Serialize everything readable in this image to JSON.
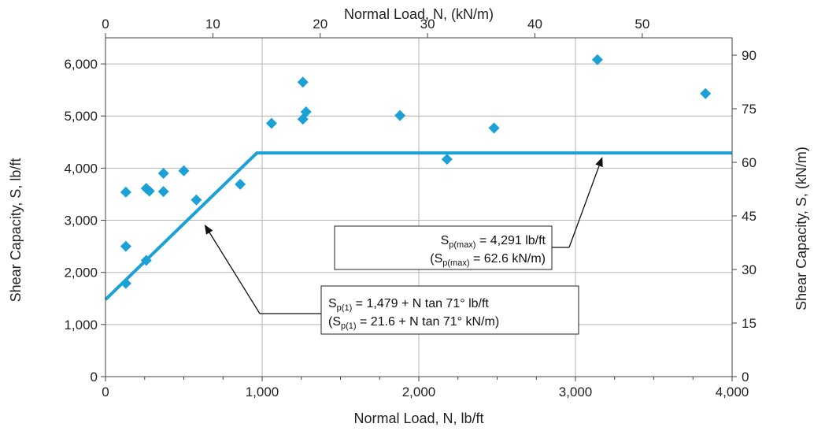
{
  "chart_data": {
    "type": "scatter",
    "title": "",
    "xlabel": "Normal Load, N, lb/ft",
    "ylabel": "Shear Capacity, S, lb/ft",
    "x2label": "Normal Load, N, (kN/m)",
    "y2label": "Shear Capacity, S, (kN/m)",
    "xlim": [
      0,
      4000
    ],
    "ylim": [
      0,
      6500
    ],
    "x2lim": [
      0,
      58.37
    ],
    "y2lim": [
      0,
      94.86
    ],
    "xticks": [
      0,
      1000,
      2000,
      3000,
      4000
    ],
    "xtick_labels": [
      "0",
      "1,000",
      "2,000",
      "3,000",
      "4,000"
    ],
    "yticks": [
      0,
      1000,
      2000,
      3000,
      4000,
      5000,
      6000
    ],
    "ytick_labels": [
      "0",
      "1,000",
      "2,000",
      "3,000",
      "4,000",
      "5,000",
      "6,000"
    ],
    "x2ticks": [
      0,
      10,
      20,
      30,
      40,
      50
    ],
    "x2tick_labels": [
      "0",
      "10",
      "20",
      "30",
      "40",
      "50"
    ],
    "y2ticks": [
      0,
      15,
      30,
      45,
      60,
      75,
      90
    ],
    "y2tick_labels": [
      "0",
      "15",
      "30",
      "45",
      "60",
      "75",
      "90"
    ],
    "grid": true,
    "color": "#1ba1d6",
    "series": [
      {
        "type": "scatter",
        "points": [
          [
            130,
            3540
          ],
          [
            130,
            2500
          ],
          [
            130,
            1790
          ],
          [
            260,
            3610
          ],
          [
            280,
            3560
          ],
          [
            260,
            2230
          ],
          [
            370,
            3900
          ],
          [
            370,
            3550
          ],
          [
            500,
            3950
          ],
          [
            580,
            3390
          ],
          [
            860,
            3690
          ],
          [
            1060,
            4860
          ],
          [
            1260,
            5650
          ],
          [
            1260,
            4940
          ],
          [
            1280,
            5080
          ],
          [
            1880,
            5010
          ],
          [
            2180,
            4170
          ],
          [
            2480,
            4770
          ],
          [
            3140,
            6080
          ],
          [
            3830,
            5430
          ]
        ]
      },
      {
        "type": "line",
        "points": [
          [
            0,
            1479
          ],
          [
            966,
            4291
          ],
          [
            4000,
            4291
          ]
        ]
      }
    ],
    "annotations": [
      {
        "id": "max",
        "line1_main": "S",
        "line1_sub": "p(max)",
        "line1_rest": " = 4,291 lb/ft",
        "line2_open": "(S",
        "line2_sub": "p(max)",
        "line2_rest": " = 62.6 kN/m)",
        "arrow_to": [
          3180,
          4291
        ]
      },
      {
        "id": "p1",
        "line1_main": "S",
        "line1_sub": "p(1)",
        "line1_rest": " = 1,479 + N tan 71° lb/ft",
        "line2_open": "(S",
        "line2_sub": "p(1)",
        "line2_rest": " = 21.6 + N tan 71° kN/m)",
        "arrow_to": [
          620,
          2950
        ]
      }
    ]
  }
}
